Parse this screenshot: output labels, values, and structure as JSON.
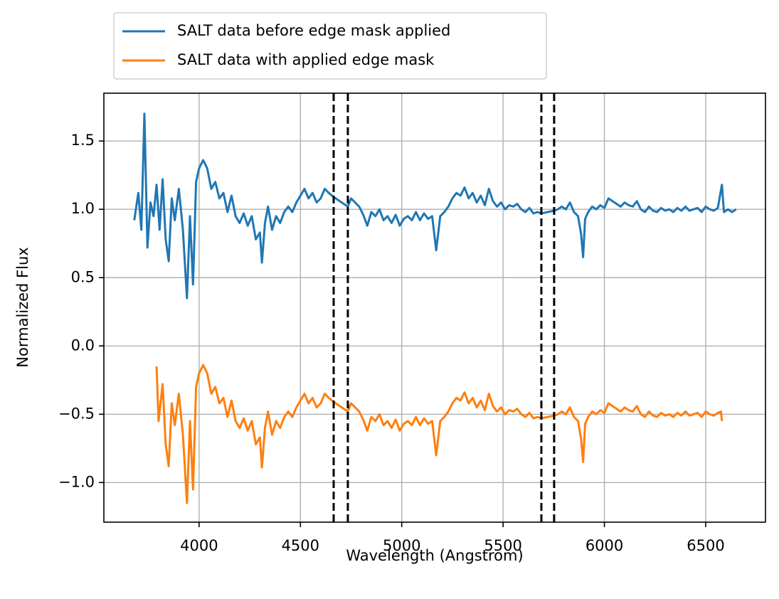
{
  "chart_data": {
    "type": "line",
    "xlabel": "Wavelength (Angstrom)",
    "ylabel": "Normalized Flux",
    "xlim": [
      3530,
      6795
    ],
    "ylim": [
      -1.29,
      1.85
    ],
    "xticks": [
      4000,
      4500,
      5000,
      5500,
      6000,
      6500
    ],
    "yticks": [
      {
        "value": -1,
        "label": "−1.0"
      },
      {
        "value": -0.5,
        "label": "−0.5"
      },
      {
        "value": 0,
        "label": "0.0"
      },
      0.5,
      {
        "value": 1,
        "label": "1.0"
      },
      1.5
    ],
    "grid": true,
    "legend": "above-left",
    "vlines": [
      4664,
      4734,
      5689,
      5752
    ],
    "vline_color": "#000000",
    "series": [
      {
        "name": "SALT data before edge mask applied",
        "color": "#1f77b4",
        "x": [
          3680,
          3700,
          3715,
          3730,
          3745,
          3760,
          3775,
          3790,
          3805,
          3820,
          3835,
          3850,
          3865,
          3880,
          3900,
          3920,
          3940,
          3955,
          3970,
          3985,
          4000,
          4020,
          4040,
          4060,
          4080,
          4100,
          4120,
          4140,
          4160,
          4180,
          4200,
          4220,
          4240,
          4260,
          4280,
          4300,
          4310,
          4325,
          4340,
          4360,
          4380,
          4400,
          4420,
          4440,
          4460,
          4480,
          4500,
          4520,
          4540,
          4560,
          4580,
          4600,
          4620,
          4640,
          4664,
          4734,
          4750,
          4770,
          4790,
          4810,
          4830,
          4850,
          4870,
          4890,
          4910,
          4930,
          4950,
          4970,
          4990,
          5010,
          5030,
          5050,
          5070,
          5090,
          5110,
          5130,
          5150,
          5170,
          5190,
          5210,
          5230,
          5250,
          5270,
          5290,
          5310,
          5330,
          5350,
          5370,
          5390,
          5410,
          5430,
          5450,
          5470,
          5490,
          5510,
          5530,
          5550,
          5570,
          5590,
          5610,
          5630,
          5650,
          5670,
          5689,
          5752,
          5770,
          5790,
          5810,
          5830,
          5850,
          5870,
          5885,
          5895,
          5905,
          5920,
          5940,
          5960,
          5980,
          6000,
          6020,
          6040,
          6060,
          6080,
          6100,
          6120,
          6140,
          6160,
          6180,
          6200,
          6220,
          6240,
          6260,
          6280,
          6300,
          6320,
          6340,
          6360,
          6380,
          6400,
          6420,
          6440,
          6460,
          6480,
          6500,
          6520,
          6540,
          6560,
          6580,
          6590,
          6610,
          6630,
          6650
        ],
        "values": [
          0.92,
          1.12,
          0.85,
          1.7,
          0.72,
          1.05,
          0.95,
          1.18,
          0.85,
          1.22,
          0.78,
          0.62,
          1.08,
          0.92,
          1.15,
          0.85,
          0.35,
          0.95,
          0.45,
          1.2,
          1.3,
          1.36,
          1.3,
          1.15,
          1.2,
          1.08,
          1.12,
          0.98,
          1.1,
          0.95,
          0.9,
          0.97,
          0.88,
          0.95,
          0.78,
          0.83,
          0.61,
          0.9,
          1.02,
          0.85,
          0.95,
          0.9,
          0.98,
          1.02,
          0.98,
          1.05,
          1.1,
          1.15,
          1.08,
          1.12,
          1.05,
          1.08,
          1.15,
          1.12,
          1.09,
          1.02,
          1.08,
          1.05,
          1.02,
          0.96,
          0.88,
          0.98,
          0.95,
          1.0,
          0.92,
          0.95,
          0.9,
          0.96,
          0.88,
          0.93,
          0.95,
          0.92,
          0.98,
          0.92,
          0.97,
          0.93,
          0.95,
          0.7,
          0.95,
          0.98,
          1.02,
          1.08,
          1.12,
          1.1,
          1.16,
          1.08,
          1.12,
          1.05,
          1.1,
          1.03,
          1.15,
          1.06,
          1.02,
          1.05,
          1.0,
          1.03,
          1.02,
          1.04,
          1.0,
          0.98,
          1.01,
          0.97,
          0.98,
          0.97,
          0.99,
          1.0,
          1.02,
          1.0,
          1.05,
          0.98,
          0.95,
          0.82,
          0.65,
          0.93,
          0.98,
          1.02,
          1.0,
          1.03,
          1.01,
          1.08,
          1.06,
          1.04,
          1.02,
          1.05,
          1.03,
          1.02,
          1.06,
          1.0,
          0.98,
          1.02,
          0.99,
          0.98,
          1.01,
          0.99,
          1.0,
          0.98,
          1.01,
          0.99,
          1.02,
          0.99,
          1.0,
          1.01,
          0.98,
          1.02,
          1.0,
          0.99,
          1.01,
          1.18,
          0.98,
          1.0,
          0.98,
          1.0
        ]
      },
      {
        "name": "SALT data with applied edge mask",
        "color": "#ff7f0e",
        "x": [
          3790,
          3800,
          3820,
          3835,
          3850,
          3865,
          3880,
          3900,
          3920,
          3940,
          3955,
          3970,
          3985,
          4000,
          4020,
          4040,
          4060,
          4080,
          4100,
          4120,
          4140,
          4160,
          4180,
          4200,
          4220,
          4240,
          4260,
          4280,
          4300,
          4310,
          4325,
          4340,
          4360,
          4380,
          4400,
          4420,
          4440,
          4460,
          4480,
          4500,
          4520,
          4540,
          4560,
          4580,
          4600,
          4620,
          4640,
          4664,
          4734,
          4750,
          4770,
          4790,
          4810,
          4830,
          4850,
          4870,
          4890,
          4910,
          4930,
          4950,
          4970,
          4990,
          5010,
          5030,
          5050,
          5070,
          5090,
          5110,
          5130,
          5150,
          5170,
          5190,
          5210,
          5230,
          5250,
          5270,
          5290,
          5310,
          5330,
          5350,
          5370,
          5390,
          5410,
          5430,
          5450,
          5470,
          5490,
          5510,
          5530,
          5550,
          5570,
          5590,
          5610,
          5630,
          5650,
          5670,
          5689,
          5752,
          5770,
          5790,
          5810,
          5830,
          5850,
          5870,
          5885,
          5895,
          5905,
          5920,
          5940,
          5960,
          5980,
          6000,
          6020,
          6040,
          6060,
          6080,
          6100,
          6120,
          6140,
          6160,
          6180,
          6200,
          6220,
          6240,
          6260,
          6280,
          6300,
          6320,
          6340,
          6360,
          6380,
          6400,
          6420,
          6440,
          6460,
          6480,
          6500,
          6520,
          6540,
          6560,
          6575,
          6580
        ],
        "values": [
          -0.15,
          -0.55,
          -0.28,
          -0.72,
          -0.88,
          -0.42,
          -0.58,
          -0.35,
          -0.65,
          -1.15,
          -0.55,
          -1.05,
          -0.3,
          -0.2,
          -0.14,
          -0.2,
          -0.35,
          -0.3,
          -0.42,
          -0.38,
          -0.52,
          -0.4,
          -0.55,
          -0.6,
          -0.53,
          -0.62,
          -0.55,
          -0.72,
          -0.67,
          -0.89,
          -0.6,
          -0.48,
          -0.65,
          -0.55,
          -0.6,
          -0.52,
          -0.48,
          -0.52,
          -0.45,
          -0.4,
          -0.35,
          -0.42,
          -0.38,
          -0.45,
          -0.42,
          -0.35,
          -0.38,
          -0.41,
          -0.48,
          -0.42,
          -0.45,
          -0.48,
          -0.54,
          -0.62,
          -0.52,
          -0.55,
          -0.5,
          -0.58,
          -0.55,
          -0.6,
          -0.54,
          -0.62,
          -0.57,
          -0.55,
          -0.58,
          -0.52,
          -0.58,
          -0.53,
          -0.57,
          -0.55,
          -0.8,
          -0.55,
          -0.52,
          -0.48,
          -0.42,
          -0.38,
          -0.4,
          -0.34,
          -0.42,
          -0.38,
          -0.45,
          -0.4,
          -0.47,
          -0.35,
          -0.44,
          -0.48,
          -0.45,
          -0.5,
          -0.47,
          -0.48,
          -0.46,
          -0.5,
          -0.52,
          -0.49,
          -0.53,
          -0.52,
          -0.53,
          -0.51,
          -0.5,
          -0.48,
          -0.5,
          -0.45,
          -0.52,
          -0.55,
          -0.68,
          -0.85,
          -0.57,
          -0.52,
          -0.48,
          -0.5,
          -0.47,
          -0.49,
          -0.42,
          -0.44,
          -0.46,
          -0.48,
          -0.45,
          -0.47,
          -0.48,
          -0.44,
          -0.5,
          -0.52,
          -0.48,
          -0.51,
          -0.52,
          -0.49,
          -0.51,
          -0.5,
          -0.52,
          -0.49,
          -0.51,
          -0.48,
          -0.51,
          -0.5,
          -0.49,
          -0.52,
          -0.48,
          -0.5,
          -0.51,
          -0.49,
          -0.48,
          -0.55
        ]
      }
    ]
  }
}
